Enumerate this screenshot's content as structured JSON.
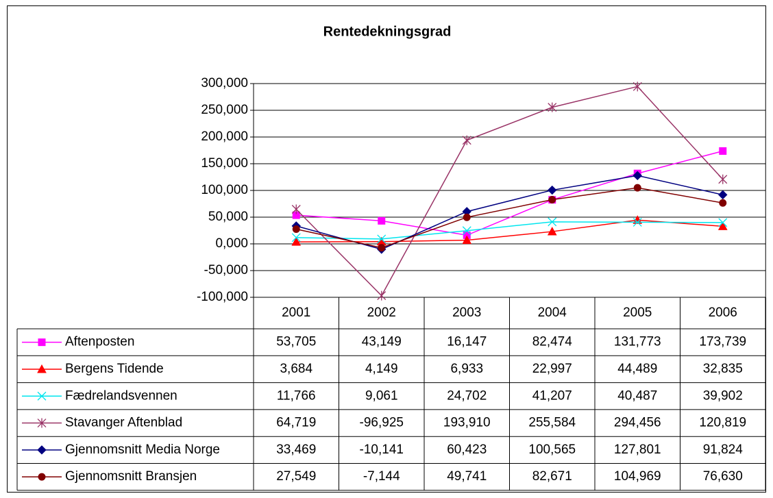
{
  "chart_data": {
    "type": "line",
    "title": "Rentedekningsgrad",
    "categories": [
      "2001",
      "2002",
      "2003",
      "2004",
      "2005",
      "2006"
    ],
    "ylim": [
      -100,
      300
    ],
    "yticks": [
      {
        "value": -100,
        "label": "-100,000"
      },
      {
        "value": -50,
        "label": "-50,000"
      },
      {
        "value": 0,
        "label": "0,000"
      },
      {
        "value": 50,
        "label": "50,000"
      },
      {
        "value": 100,
        "label": "100,000"
      },
      {
        "value": 150,
        "label": "150,000"
      },
      {
        "value": 200,
        "label": "200,000"
      },
      {
        "value": 250,
        "label": "250,000"
      },
      {
        "value": 300,
        "label": "300,000"
      }
    ],
    "grid": true,
    "series": [
      {
        "name": "Aftenposten",
        "color": "#ff00ff",
        "marker": "square",
        "values": [
          53.705,
          43.149,
          16.147,
          82.474,
          131.773,
          173.739
        ],
        "value_labels": [
          "53,705",
          "43,149",
          "16,147",
          "82,474",
          "131,773",
          "173,739"
        ]
      },
      {
        "name": "Bergens Tidende",
        "color": "#ff0000",
        "marker": "triangle",
        "values": [
          3.684,
          4.149,
          6.933,
          22.997,
          44.489,
          32.835
        ],
        "value_labels": [
          "3,684",
          "4,149",
          "6,933",
          "22,997",
          "44,489",
          "32,835"
        ]
      },
      {
        "name": "Fædrelandsvennen",
        "color": "#00e5ee",
        "marker": "x",
        "values": [
          11.766,
          9.061,
          24.702,
          41.207,
          40.487,
          39.902
        ],
        "value_labels": [
          "11,766",
          "9,061",
          "24,702",
          "41,207",
          "40,487",
          "39,902"
        ]
      },
      {
        "name": "Stavanger Aftenblad",
        "color": "#993366",
        "marker": "star",
        "values": [
          64.719,
          -96.925,
          193.91,
          255.584,
          294.456,
          120.819
        ],
        "value_labels": [
          "64,719",
          "-96,925",
          "193,910",
          "255,584",
          "294,456",
          "120,819"
        ]
      },
      {
        "name": "Gjennomsnitt Media Norge",
        "color": "#000080",
        "marker": "diamond",
        "values": [
          33.469,
          -10.141,
          60.423,
          100.565,
          127.801,
          91.824
        ],
        "value_labels": [
          "33,469",
          "-10,141",
          "60,423",
          "100,565",
          "127,801",
          "91,824"
        ]
      },
      {
        "name": "Gjennomsnitt Bransjen",
        "color": "#800000",
        "marker": "circle",
        "values": [
          27.549,
          -7.144,
          49.741,
          82.671,
          104.969,
          76.63
        ],
        "value_labels": [
          "27,549",
          "-7,144",
          "49,741",
          "82,671",
          "104,969",
          "76,630"
        ]
      }
    ]
  }
}
